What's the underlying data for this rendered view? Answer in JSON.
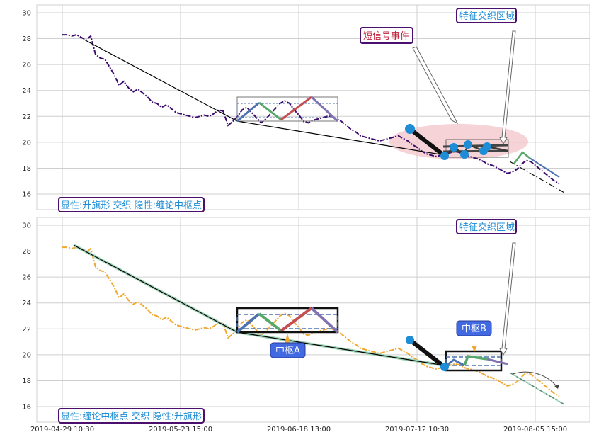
{
  "colors": {
    "price_top": "#3b0a6e",
    "price_bottom": "#f0a830",
    "trend": "#000000",
    "leg_blue": "#4c72b0",
    "leg_green": "#55a868",
    "leg_red": "#c44e52",
    "leg_purple": "#8172b2",
    "marker": "#1f8dd6",
    "highlight": "#f2c4c8",
    "label_border": "#4b0f6e",
    "label_text_blue": "#1f8dd6",
    "label_text_red": "#c0203a",
    "callout_fill": "#4169e1"
  },
  "chart_data": [
    {
      "type": "line",
      "panel": "top",
      "ylim": [
        14.8,
        30.6
      ],
      "yticks": [
        16,
        18,
        20,
        22,
        24,
        26,
        28,
        30
      ],
      "xticks": [
        "2019-04-29 10:30",
        "2019-05-23 15:00",
        "2019-06-18 13:00",
        "2019-07-12 10:30",
        "2019-08-05 15:00"
      ],
      "price_series_x": [
        0,
        2,
        4,
        6,
        8,
        10,
        12,
        14,
        16,
        18,
        20,
        22,
        24,
        26,
        28,
        30,
        32,
        34,
        36,
        38,
        40,
        42,
        44,
        46,
        48,
        50,
        52,
        54,
        56,
        58,
        60,
        62,
        64,
        66,
        68,
        70,
        72,
        74,
        76,
        78,
        80,
        82,
        84,
        86,
        88,
        90,
        92,
        94,
        96,
        98,
        100,
        102,
        104,
        106,
        108,
        110,
        112,
        114,
        116,
        118,
        120,
        122,
        124,
        126,
        128,
        130,
        132,
        134,
        136,
        138,
        140,
        142,
        144,
        146,
        148,
        150,
        152,
        154,
        156,
        158,
        160,
        162,
        164,
        166,
        168,
        170,
        172,
        174,
        176,
        178,
        180,
        182,
        184,
        186,
        188,
        190,
        192,
        194,
        196,
        198,
        200,
        202,
        204,
        206,
        208,
        210
      ],
      "price_series_y": [
        28.3,
        28.3,
        28.2,
        28.3,
        28.1,
        27.9,
        28.2,
        26.8,
        26.5,
        26.4,
        25.8,
        25.2,
        24.4,
        24.7,
        24.2,
        23.9,
        24.1,
        23.8,
        23.5,
        23.1,
        23.0,
        22.7,
        22.9,
        22.6,
        22.3,
        22.2,
        22.1,
        22.0,
        21.9,
        22.0,
        22.1,
        22.0,
        22.2,
        22.5,
        22.4,
        21.3,
        21.6,
        22.0,
        22.5,
        22.7,
        22.3,
        21.9,
        21.5,
        21.8,
        22.2,
        22.6,
        23.0,
        23.2,
        23.0,
        22.5,
        22.1,
        21.6,
        21.5,
        21.7,
        21.8,
        21.9,
        22.0,
        22.0,
        21.8,
        21.6,
        21.3,
        21.0,
        20.8,
        20.5,
        20.4,
        20.3,
        20.2,
        20.1,
        20.2,
        20.3,
        20.4,
        20.5,
        20.3,
        20.1,
        19.8,
        19.6,
        19.3,
        19.1,
        19.0,
        18.9,
        19.0,
        19.1,
        19.2,
        19.3,
        19.2,
        19.0,
        18.9,
        18.8,
        18.7,
        18.5,
        18.3,
        18.2,
        18.0,
        17.8,
        17.6,
        17.7,
        17.9,
        18.3,
        18.6,
        18.5,
        18.2,
        17.9,
        17.6,
        17.3,
        17.0,
        16.8
      ]
    },
    {
      "type": "line",
      "panel": "bottom",
      "ylim": [
        14.8,
        30.6
      ],
      "yticks": [
        16,
        18,
        20,
        22,
        24,
        26,
        28,
        30
      ],
      "xticks": [
        "2019-04-29 10:30",
        "2019-05-23 15:00",
        "2019-06-18 13:00",
        "2019-07-12 10:30",
        "2019-08-05 15:00"
      ]
    }
  ],
  "annotations": {
    "top_box_label": "显性:升旗形 交织 隐性:缠论中枢点",
    "top_short_signal": "短信号事件",
    "top_feature_zone": "特征交织区域",
    "bottom_box_label": "显性:缠论中枢点 交织 隐性:升旗形",
    "bottom_feature_zone": "特征交织区域",
    "bottom_pivot_a": "中枢A",
    "bottom_pivot_b": "中枢B"
  }
}
